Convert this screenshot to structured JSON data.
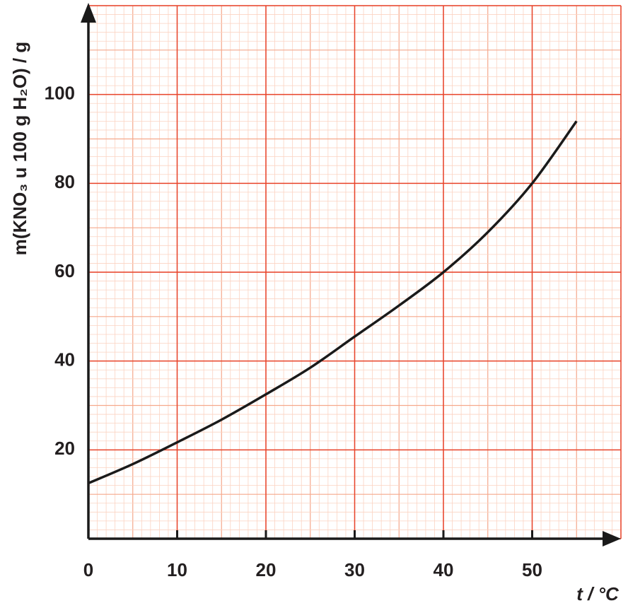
{
  "chart_data": {
    "type": "line",
    "x_label": "t / °C",
    "y_label": "m(KNO₃  u 100 g H₂O) / g",
    "x": [
      0,
      5,
      10,
      15,
      20,
      25,
      30,
      35,
      40,
      45,
      50,
      55
    ],
    "series": [
      {
        "color": "#1a1a1a",
        "values": [
          12.5,
          16.8,
          21.7,
          26.8,
          32.5,
          38.5,
          45.5,
          52.5,
          60,
          69,
          80,
          94
        ]
      }
    ],
    "xlim": [
      0,
      60
    ],
    "ylim": [
      0,
      120
    ],
    "xticks": [
      0,
      10,
      20,
      30,
      40,
      50
    ],
    "yticks": [
      20,
      40,
      60,
      80,
      100
    ],
    "grid": true
  }
}
